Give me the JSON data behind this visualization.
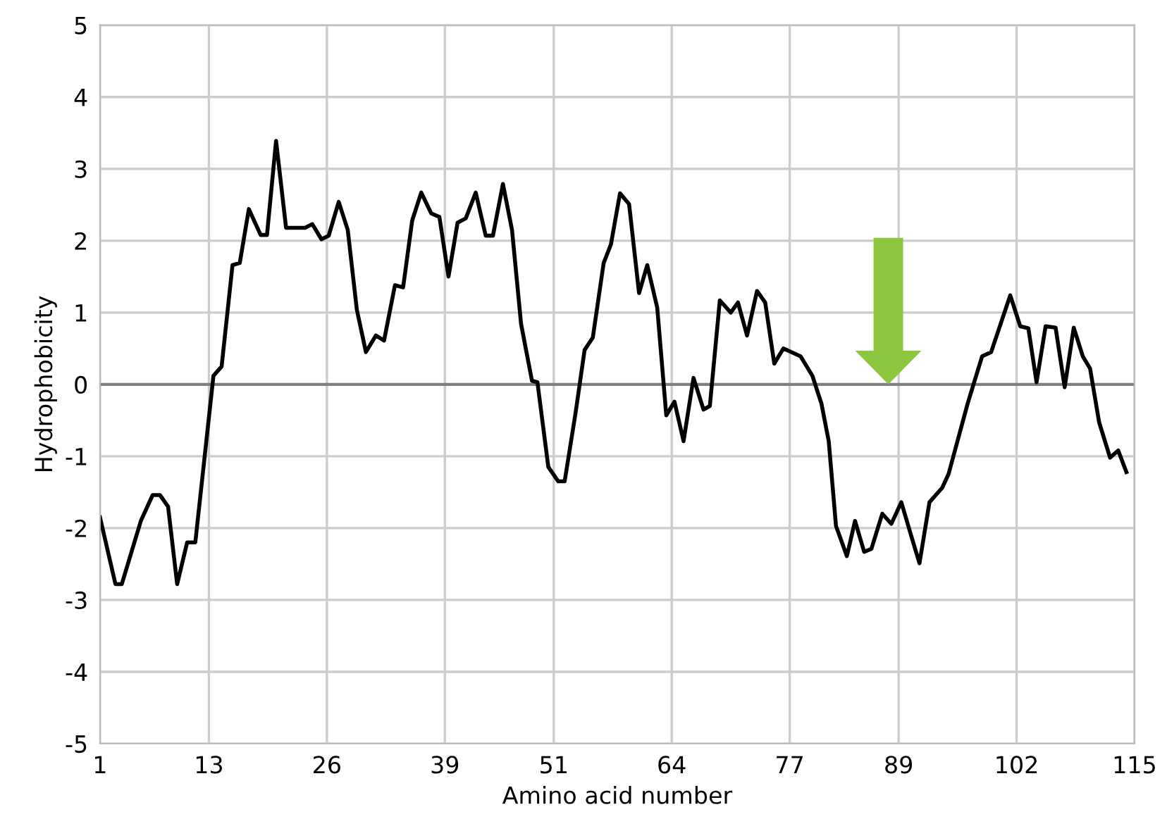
{
  "chart_data": {
    "type": "line",
    "xlabel": "Amino acid number",
    "ylabel": "Hydrophobicity",
    "xlim": [
      1,
      115
    ],
    "xticks": [
      1,
      13,
      26,
      39,
      51,
      64,
      77,
      89,
      102,
      115
    ],
    "ylim": [
      -5,
      5
    ],
    "yticks": [
      -5,
      -4,
      -3,
      -2,
      -1,
      0,
      1,
      2,
      3,
      4,
      5
    ],
    "grid": true,
    "legend": false,
    "marker": "none",
    "line_style": "solid",
    "ref_lines": [
      {
        "axis": "y",
        "value": 0,
        "color": "#808080"
      }
    ],
    "series": [
      {
        "color": "#000000",
        "x": [
          1,
          2.7,
          3.4,
          5.5,
          6.8,
          7.6,
          8.5,
          9.5,
          10.6,
          11.5,
          13.5,
          14.4,
          15.6,
          16.4,
          17.4,
          18.7,
          19.4,
          20.4,
          21.5,
          23.6,
          24.4,
          25.4,
          26.2,
          27.3,
          28.3,
          29.3,
          30.3,
          31.4,
          32.3,
          33.5,
          34.4,
          35.4,
          36.4,
          37.5,
          38.4,
          39.4,
          40.4,
          41.3,
          42.4,
          43.5,
          44.3,
          45.4,
          46.4,
          47.4,
          48.6,
          49.2,
          50.4,
          51.5,
          52.2,
          53.4,
          54.4,
          55.3,
          56.5,
          57.3,
          58.3,
          59.3,
          60.4,
          61.3,
          62.4,
          63.4,
          64.3,
          65.3,
          66.4,
          67.5,
          68.2,
          69.3,
          70.5,
          71.3,
          72.3,
          73.4,
          74.3,
          75.3,
          76.3,
          78.2,
          79.5,
          80.5,
          81.3,
          82.1,
          83.3,
          84.2,
          85.2,
          86,
          87.2,
          88.2,
          89.3,
          90.3,
          91.3,
          92.4,
          93.8,
          94.5,
          96.6,
          98.2,
          99.2,
          101.3,
          102.4,
          103.3,
          104.2,
          105.2,
          106.3,
          107.3,
          108.3,
          109.3,
          110.1,
          111.1,
          112.3,
          113.2,
          114.1
        ],
        "values": [
          -1.85,
          -2.78,
          -2.78,
          -1.9,
          -1.54,
          -1.54,
          -1.7,
          -2.78,
          -2.2,
          -2.2,
          0.12,
          0.25,
          1.66,
          1.69,
          2.44,
          2.08,
          2.08,
          3.39,
          2.18,
          2.18,
          2.23,
          2.02,
          2.07,
          2.54,
          2.15,
          1.04,
          0.45,
          0.68,
          0.61,
          1.38,
          1.35,
          2.28,
          2.67,
          2.38,
          2.33,
          1.5,
          2.25,
          2.31,
          2.67,
          2.07,
          2.07,
          2.79,
          2.15,
          0.84,
          0.05,
          0.03,
          -1.15,
          -1.35,
          -1.35,
          -0.4,
          0.48,
          0.65,
          1.69,
          1.95,
          2.66,
          2.51,
          1.27,
          1.66,
          1.07,
          -0.43,
          -0.24,
          -0.79,
          0.09,
          -0.35,
          -0.3,
          1.17,
          1.0,
          1.14,
          0.68,
          1.3,
          1.14,
          0.29,
          0.5,
          0.39,
          0.12,
          -0.27,
          -0.79,
          -1.97,
          -2.39,
          -1.9,
          -2.33,
          -2.29,
          -1.8,
          -1.94,
          -1.64,
          -2.07,
          -2.49,
          -1.64,
          -1.44,
          -1.25,
          -0.27,
          0.39,
          0.45,
          1.24,
          0.81,
          0.78,
          0.03,
          0.81,
          0.79,
          -0.04,
          0.79,
          0.39,
          0.22,
          -0.53,
          -1.02,
          -0.92,
          -1.22
        ]
      }
    ]
  }
}
